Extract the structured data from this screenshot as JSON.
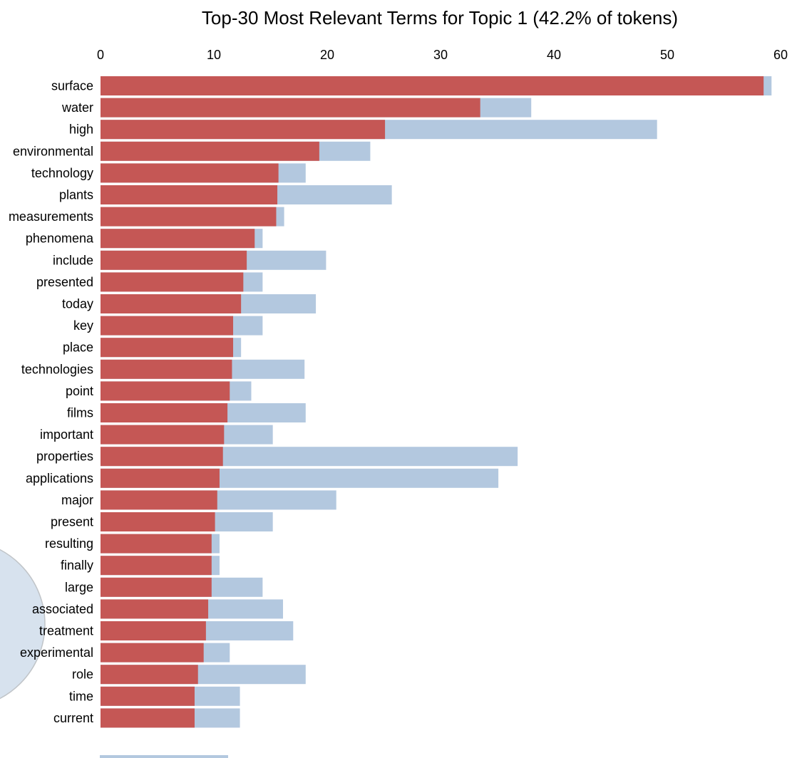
{
  "chart_data": {
    "type": "bar",
    "orientation": "horizontal",
    "title": "Top-30 Most Relevant Terms for Topic 1 (42.2% of tokens)",
    "xlabel": "",
    "ylabel": "",
    "xlim": [
      0,
      60
    ],
    "x_ticks": [
      0,
      10,
      20,
      30,
      40,
      50,
      60
    ],
    "x_axis_position": "top",
    "grid": false,
    "legend": "none",
    "colors": {
      "topic": "#c55755",
      "overall": "#b3c8df",
      "circle": "#d7e2ee",
      "circle_stroke": "#c0c4c8"
    },
    "categories": [
      "surface",
      "water",
      "high",
      "environmental",
      "technology",
      "plants",
      "measurements",
      "phenomena",
      "include",
      "presented",
      "today",
      "key",
      "place",
      "technologies",
      "point",
      "films",
      "important",
      "properties",
      "applications",
      "major",
      "present",
      "resulting",
      "finally",
      "large",
      "associated",
      "treatment",
      "experimental",
      "role",
      "time",
      "current"
    ],
    "series": [
      {
        "values": [
          58.5,
          33.5,
          25.1,
          19.3,
          15.7,
          15.6,
          15.5,
          13.6,
          12.9,
          12.6,
          12.4,
          11.7,
          11.7,
          11.6,
          11.4,
          11.2,
          10.9,
          10.8,
          10.5,
          10.3,
          10.1,
          9.8,
          9.8,
          9.8,
          9.5,
          9.3,
          9.1,
          8.6,
          8.3,
          8.3
        ]
      },
      {
        "values": [
          59.2,
          38.0,
          49.1,
          23.8,
          18.1,
          25.7,
          16.2,
          14.3,
          19.9,
          14.3,
          19.0,
          14.3,
          12.4,
          18.0,
          13.3,
          18.1,
          15.2,
          36.8,
          35.1,
          20.8,
          15.2,
          10.5,
          10.5,
          14.3,
          16.1,
          17.0,
          11.4,
          18.1,
          12.3,
          12.3
        ]
      }
    ]
  }
}
